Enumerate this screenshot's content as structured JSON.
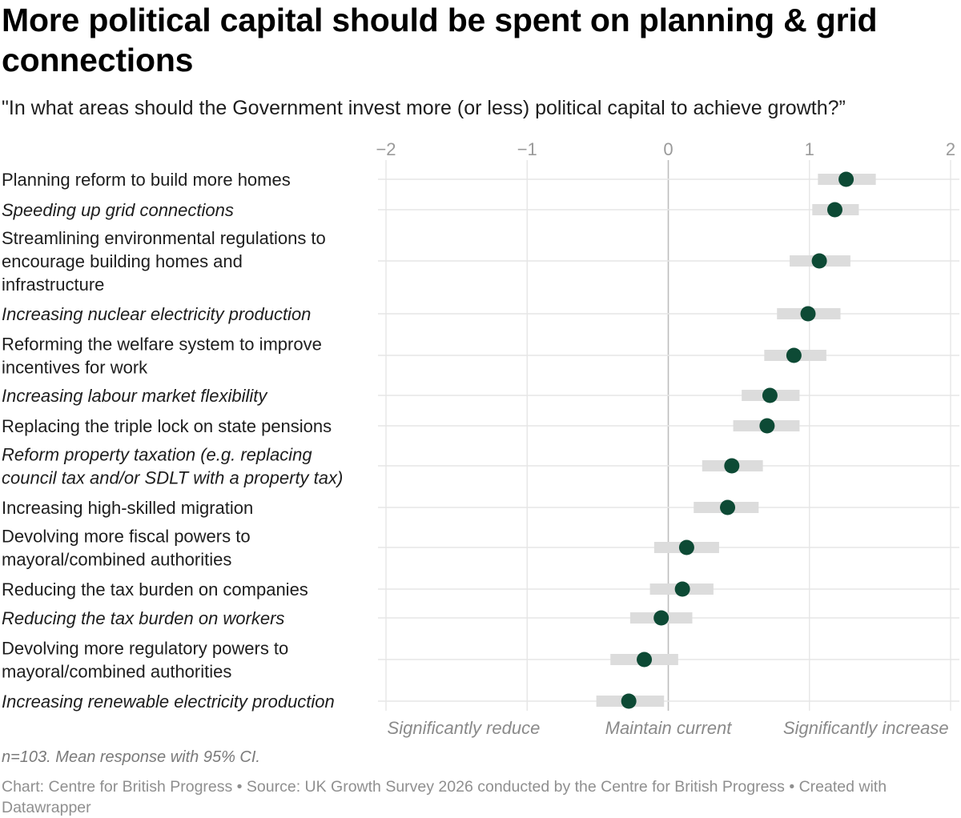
{
  "title": "More political capital should be spent on planning & grid connections",
  "subtitle": "\"In what areas should the Government invest more (or less) political capital to achieve growth?”",
  "note": "n=103. Mean response with 95% CI.",
  "footer": "Chart: Centre for British Progress • Source: UK Growth Survey 2026 conducted by the Centre for British Progress • Created with Datawrapper",
  "colors": {
    "dot": "#0d4a35",
    "ci_bar": "#dcdcdc",
    "gridline": "#e6e6e6",
    "zero_line": "#bdbdbd",
    "tick_text": "#9a9a9a"
  },
  "chart_data": {
    "type": "scatter",
    "subtype": "dot-plot with confidence intervals",
    "xlim": [
      -2,
      2
    ],
    "x_ticks": [
      -2,
      -1,
      0,
      1,
      2
    ],
    "x_tick_labels": [
      "−2",
      "−1",
      "0",
      "1",
      "2"
    ],
    "x_anchor_labels": [
      {
        "x": -1.45,
        "label": "Significantly reduce"
      },
      {
        "x": 0,
        "label": "Maintain current"
      },
      {
        "x": 1.4,
        "label": "Significantly increase"
      }
    ],
    "grid": true,
    "categories": [
      "Planning reform to build more homes",
      "Speeding up grid connections",
      "Streamlining environmental regulations to encourage building homes and infrastructure",
      "Increasing nuclear electricity production",
      "Reforming the welfare system to improve incentives for work",
      "Increasing labour market flexibility",
      "Replacing the triple lock on state pensions",
      "Reform property taxation (e.g. replacing council tax and/or SDLT with a property tax)",
      "Increasing high-skilled migration",
      "Devolving more fiscal powers to mayoral/combined authorities",
      "Reducing the tax burden on companies",
      "Reducing the tax burden on workers",
      "Devolving more regulatory powers to mayoral/combined authorities",
      "Increasing renewable electricity production"
    ],
    "category_label_lines": [
      [
        "Planning reform to build more homes"
      ],
      [
        "Speeding up grid connections"
      ],
      [
        "Streamlining environmental regulations to",
        "encourage building homes and",
        "infrastructure"
      ],
      [
        "Increasing nuclear electricity production"
      ],
      [
        "Reforming the welfare system to improve",
        "incentives for work"
      ],
      [
        "Increasing labour market flexibility"
      ],
      [
        "Replacing the triple lock on state pensions"
      ],
      [
        "Reform property taxation (e.g. replacing",
        "council tax and/or SDLT with a property tax)"
      ],
      [
        "Increasing high-skilled migration"
      ],
      [
        "Devolving more fiscal powers to",
        "mayoral/combined authorities"
      ],
      [
        "Reducing the tax burden on companies"
      ],
      [
        "Reducing the tax burden on workers"
      ],
      [
        "Devolving more regulatory powers to",
        "mayoral/combined authorities"
      ],
      [
        "Increasing renewable electricity production"
      ]
    ],
    "italic": [
      false,
      true,
      false,
      true,
      false,
      true,
      false,
      true,
      false,
      false,
      false,
      true,
      false,
      true
    ],
    "means": [
      1.26,
      1.18,
      1.07,
      0.99,
      0.89,
      0.72,
      0.7,
      0.45,
      0.42,
      0.13,
      0.1,
      -0.05,
      -0.17,
      -0.28
    ],
    "ci_low": [
      1.06,
      1.02,
      0.86,
      0.77,
      0.68,
      0.52,
      0.46,
      0.24,
      0.18,
      -0.1,
      -0.13,
      -0.27,
      -0.41,
      -0.51
    ],
    "ci_high": [
      1.47,
      1.35,
      1.29,
      1.22,
      1.12,
      0.93,
      0.93,
      0.67,
      0.64,
      0.36,
      0.32,
      0.17,
      0.07,
      -0.03
    ]
  }
}
